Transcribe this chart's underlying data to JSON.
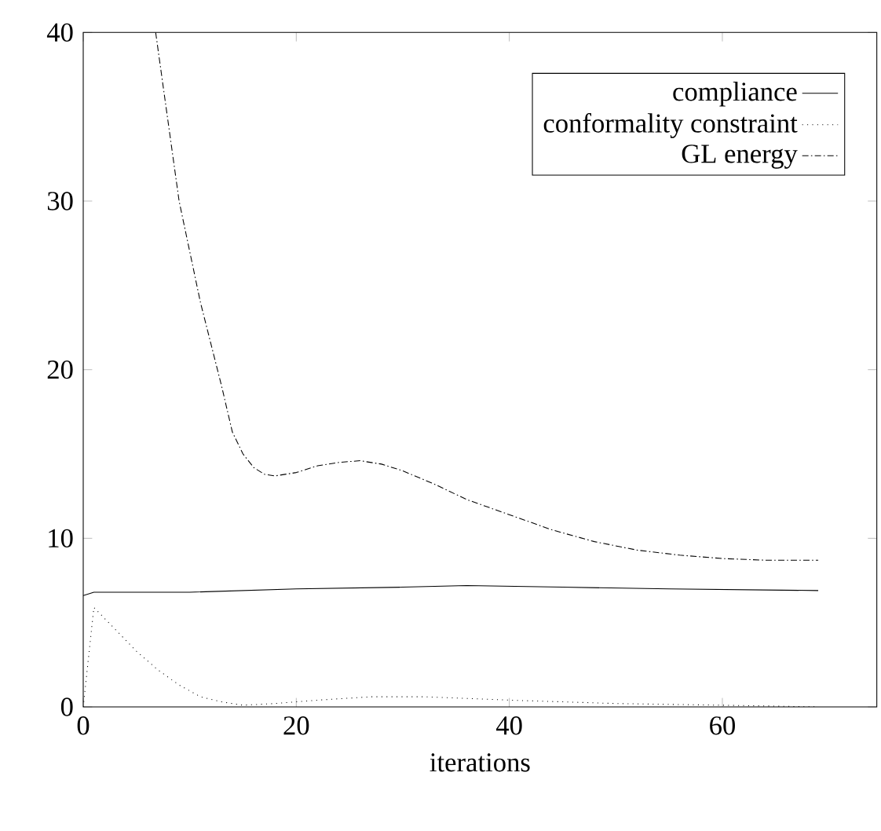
{
  "chart_data": {
    "type": "line",
    "xlabel": "iterations",
    "xlim": [
      0,
      74.5
    ],
    "ylim": [
      0,
      40
    ],
    "xticks": [
      0,
      20,
      40,
      60
    ],
    "yticks": [
      0,
      10,
      20,
      30,
      40
    ],
    "legend": "top right",
    "grid": false,
    "marker": "none",
    "series": [
      {
        "name": "compliance",
        "color": "#000000",
        "line_style": "solid",
        "x": [
          0,
          1,
          5,
          10,
          20,
          30,
          36,
          45,
          55,
          69
        ],
        "values": [
          6.6,
          6.8,
          6.8,
          6.8,
          7.0,
          7.1,
          7.2,
          7.1,
          7.0,
          6.9
        ]
      },
      {
        "name": "conformality constraint",
        "color": "#000000",
        "line_style": "dotted",
        "x": [
          0,
          1,
          3,
          5,
          7,
          9,
          11,
          13,
          15,
          18,
          22,
          27,
          32,
          40,
          50,
          60,
          69
        ],
        "values": [
          0,
          5.9,
          4.6,
          3.3,
          2.2,
          1.3,
          0.6,
          0.3,
          0.1,
          0.2,
          0.4,
          0.6,
          0.6,
          0.4,
          0.2,
          0.1,
          0
        ]
      },
      {
        "name": "GL energy",
        "color": "#000000",
        "line_style": "dashdot",
        "x": [
          6.8,
          9,
          11,
          13,
          14,
          15,
          16,
          17,
          18,
          20,
          22,
          24,
          26,
          28,
          30,
          33,
          36,
          40,
          44,
          48,
          52,
          56,
          60,
          64,
          69
        ],
        "values": [
          40,
          30,
          24,
          19,
          16.3,
          15.0,
          14.2,
          13.8,
          13.7,
          13.9,
          14.3,
          14.5,
          14.6,
          14.4,
          14.0,
          13.2,
          12.3,
          11.4,
          10.5,
          9.8,
          9.3,
          9.0,
          8.8,
          8.7,
          8.7
        ]
      }
    ]
  }
}
